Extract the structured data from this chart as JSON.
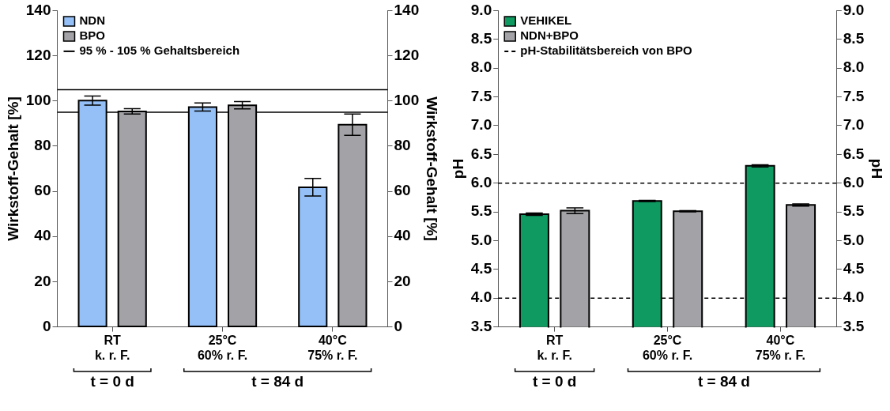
{
  "chart_data": [
    {
      "type": "bar",
      "categories": [
        "RT\nk. r. F.",
        "25°C\n60% r. F.",
        "40°C\n75% r. F."
      ],
      "series": [
        {
          "name": "NDN",
          "color": "#94c0f7",
          "values": [
            100.2,
            97.3,
            61.8
          ],
          "errors": [
            2.0,
            1.8,
            3.9
          ]
        },
        {
          "name": "BPO",
          "color": "#a3a2a6",
          "values": [
            95.4,
            98.1,
            89.5
          ],
          "errors": [
            1.2,
            1.6,
            4.7
          ]
        }
      ],
      "ylabel": "Wirkstoff-Gehalt [%]",
      "y2label": "Wirkstoff-Gehalt [%]",
      "ylim": [
        0,
        140
      ],
      "yticks": [
        0,
        20,
        40,
        60,
        80,
        100,
        120,
        140
      ],
      "y2lim": [
        0,
        140
      ],
      "y2ticks": [
        0,
        20,
        40,
        60,
        80,
        100,
        120,
        140
      ],
      "ref_lines": [
        {
          "axis": "y",
          "value": 95,
          "label": "95 % - 105 % Gehaltsbereich",
          "color": "#000000",
          "line_style": "solid"
        },
        {
          "axis": "y",
          "value": 105,
          "color": "#000000",
          "line_style": "solid"
        }
      ],
      "annotations": [
        "t = 0 d",
        "t = 84 d"
      ],
      "legend": "top left"
    },
    {
      "type": "bar",
      "categories": [
        "RT\nk. r. F.",
        "25°C\n60% r. F.",
        "40°C\n75% r. F."
      ],
      "series": [
        {
          "name": "VEHIKEL",
          "color": "#0e9a60",
          "values": [
            5.46,
            5.69,
            6.3
          ],
          "errors": [
            0.02,
            0.01,
            0.02
          ]
        },
        {
          "name": "NDN+BPO",
          "color": "#a3a2a6",
          "values": [
            5.52,
            5.51,
            5.62
          ],
          "errors": [
            0.05,
            0.01,
            0.02
          ]
        }
      ],
      "ylabel": "pH",
      "y2label": "pH",
      "ylim": [
        3.5,
        9
      ],
      "yticks": [
        {
          "value": 3.5,
          "label": "3.5"
        },
        {
          "value": 4,
          "label": "4.0"
        },
        {
          "value": 4.5,
          "label": "4.5"
        },
        {
          "value": 5,
          "label": "5.0"
        },
        {
          "value": 5.5,
          "label": "5.5"
        },
        {
          "value": 6,
          "label": "6.0"
        },
        {
          "value": 6.5,
          "label": "6.5"
        },
        {
          "value": 7,
          "label": "7.0"
        },
        {
          "value": 7.5,
          "label": "7.5"
        },
        {
          "value": 8,
          "label": "8.0"
        },
        {
          "value": 8.5,
          "label": "8.5"
        },
        {
          "value": 9,
          "label": "9.0"
        }
      ],
      "y2lim": [
        3.5,
        9
      ],
      "y2ticks": [
        {
          "value": 3.5,
          "label": "3.5"
        },
        {
          "value": 4,
          "label": "4.0"
        },
        {
          "value": 4.5,
          "label": "4.5"
        },
        {
          "value": 5,
          "label": "5.0"
        },
        {
          "value": 5.5,
          "label": "5.5"
        },
        {
          "value": 6,
          "label": "6.0"
        },
        {
          "value": 6.5,
          "label": "6.5"
        },
        {
          "value": 7,
          "label": "7.0"
        },
        {
          "value": 7.5,
          "label": "7.5"
        },
        {
          "value": 8,
          "label": "8.0"
        },
        {
          "value": 8.5,
          "label": "8.5"
        },
        {
          "value": 9,
          "label": "9.0"
        }
      ],
      "ref_lines": [
        {
          "axis": "y",
          "value": 6,
          "label": "pH-Stabilitätsbereich von BPO",
          "color": "#000000",
          "line_style": "dashed"
        },
        {
          "axis": "y",
          "value": 4,
          "color": "#000000",
          "line_style": "dashed"
        }
      ],
      "annotations": [
        "t = 0 d",
        "t = 84 d"
      ],
      "legend": "top left"
    }
  ]
}
